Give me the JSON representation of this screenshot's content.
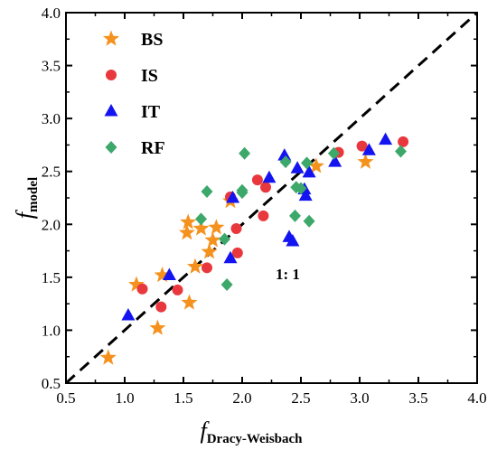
{
  "chart_data": {
    "type": "scatter",
    "xlabel": {
      "main": "f",
      "sub": "Dracy-Weisbach"
    },
    "ylabel": {
      "main": "f",
      "sub": "model"
    },
    "xlim": [
      0.5,
      4.0
    ],
    "ylim": [
      0.5,
      4.0
    ],
    "xticks": [
      "0.5",
      "1.0",
      "1.5",
      "2.0",
      "2.5",
      "3.0",
      "3.5",
      "4.0"
    ],
    "yticks": [
      "0.5",
      "1.0",
      "1.5",
      "2.0",
      "2.5",
      "3.0",
      "3.5",
      "4.0"
    ],
    "grid": false,
    "legend_position": "top-left",
    "reference_line": {
      "label": "1:  1",
      "style": "dashed",
      "from": [
        0.5,
        0.5
      ],
      "to": [
        4.0,
        4.0
      ]
    },
    "series": [
      {
        "name": "BS",
        "marker": "star",
        "color": "#f5921e",
        "points": [
          [
            0.86,
            0.74
          ],
          [
            1.1,
            1.43
          ],
          [
            1.28,
            1.02
          ],
          [
            1.32,
            1.52
          ],
          [
            1.53,
            1.92
          ],
          [
            1.54,
            2.02
          ],
          [
            1.55,
            1.26
          ],
          [
            1.6,
            1.6
          ],
          [
            1.65,
            1.96
          ],
          [
            1.72,
            1.74
          ],
          [
            1.75,
            1.85
          ],
          [
            1.78,
            1.97
          ],
          [
            1.9,
            2.22
          ],
          [
            2.63,
            2.55
          ],
          [
            3.05,
            2.59
          ]
        ]
      },
      {
        "name": "IS",
        "marker": "circle",
        "color": "#e8383d",
        "points": [
          [
            1.15,
            1.39
          ],
          [
            1.31,
            1.22
          ],
          [
            1.45,
            1.38
          ],
          [
            1.7,
            1.59
          ],
          [
            1.9,
            2.26
          ],
          [
            1.95,
            1.96
          ],
          [
            1.96,
            1.73
          ],
          [
            2.13,
            2.42
          ],
          [
            2.18,
            2.08
          ],
          [
            2.2,
            2.35
          ],
          [
            2.82,
            2.68
          ],
          [
            3.02,
            2.74
          ],
          [
            3.37,
            2.78
          ]
        ]
      },
      {
        "name": "IT",
        "marker": "triangle",
        "color": "#1414f0",
        "points": [
          [
            1.03,
            1.14
          ],
          [
            1.38,
            1.52
          ],
          [
            1.9,
            1.68
          ],
          [
            1.92,
            2.25
          ],
          [
            2.23,
            2.44
          ],
          [
            2.36,
            2.65
          ],
          [
            2.4,
            1.88
          ],
          [
            2.43,
            1.84
          ],
          [
            2.47,
            2.53
          ],
          [
            2.53,
            2.33
          ],
          [
            2.54,
            2.27
          ],
          [
            2.57,
            2.49
          ],
          [
            2.79,
            2.59
          ],
          [
            3.08,
            2.7
          ],
          [
            3.22,
            2.8
          ]
        ]
      },
      {
        "name": "RF",
        "marker": "diamond",
        "color": "#3ca86a",
        "points": [
          [
            1.65,
            2.05
          ],
          [
            1.7,
            2.31
          ],
          [
            1.85,
            1.86
          ],
          [
            1.87,
            1.43
          ],
          [
            2.0,
            2.3
          ],
          [
            2.0,
            2.32
          ],
          [
            2.02,
            2.67
          ],
          [
            2.37,
            2.59
          ],
          [
            2.45,
            2.08
          ],
          [
            2.46,
            2.35
          ],
          [
            2.5,
            2.34
          ],
          [
            2.55,
            2.58
          ],
          [
            2.57,
            2.03
          ],
          [
            2.78,
            2.67
          ],
          [
            3.35,
            2.69
          ]
        ]
      }
    ]
  }
}
